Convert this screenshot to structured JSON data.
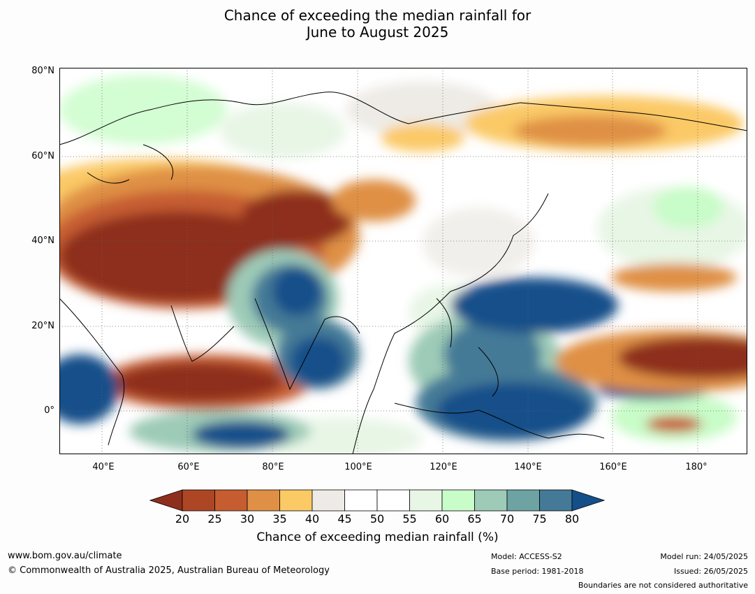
{
  "title": {
    "line1": "Chance of exceeding the median rainfall for",
    "line2": "June to August 2025"
  },
  "lat_labels": [
    "80°N",
    "60°N",
    "40°N",
    "20°N",
    "0°"
  ],
  "lon_labels": [
    "40°E",
    "60°E",
    "80°E",
    "100°E",
    "120°E",
    "140°E",
    "160°E",
    "180°"
  ],
  "colorbar": {
    "label": "Chance of exceeding median rainfall (%)",
    "ticks": [
      "20",
      "25",
      "30",
      "35",
      "40",
      "45",
      "50",
      "55",
      "60",
      "65",
      "70",
      "75",
      "80"
    ],
    "colors": [
      "#8e2f1d",
      "#ad4625",
      "#c65d30",
      "#df9045",
      "#fbc966",
      "#eeebe6",
      "#ffffff",
      "#ffffff",
      "#e8f6e6",
      "#c8fcc8",
      "#9dcbb7",
      "#6ea3a3",
      "#447a97",
      "#154f8a"
    ]
  },
  "footer": {
    "url": "www.bom.gov.au/climate",
    "copyright": "© Commonwealth of Australia 2025, Australian Bureau of Meteorology",
    "model": "Model: ACCESS-S2",
    "base_period": "Base period: 1981-2018",
    "model_run": "Model run: 24/05/2025",
    "issued": "Issued: 26/05/2025",
    "disclaimer": "Boundaries are not considered authoritative"
  }
}
